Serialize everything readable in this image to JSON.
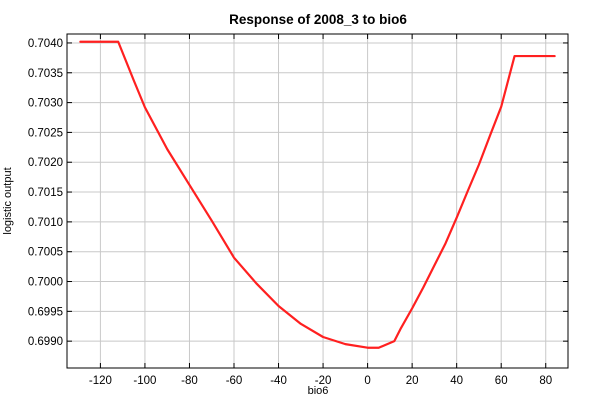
{
  "chart_data": {
    "type": "line",
    "title": "Response of 2008_3 to bio6",
    "xlabel": "bio6",
    "ylabel": "logistic output",
    "xlim": [
      -135,
      90
    ],
    "ylim": [
      0.69855,
      0.70415
    ],
    "x_ticks": [
      -120,
      -100,
      -80,
      -60,
      -40,
      -20,
      0,
      20,
      40,
      60,
      80
    ],
    "y_ticks": [
      0.699,
      0.6995,
      0.7,
      0.7005,
      0.701,
      0.7015,
      0.702,
      0.7025,
      0.703,
      0.7035,
      0.704
    ],
    "y_tick_labels": [
      "0.6990",
      "0.6995",
      "0.7000",
      "0.7005",
      "0.7010",
      "0.7015",
      "0.7020",
      "0.7025",
      "0.7030",
      "0.7035",
      "0.7040"
    ],
    "grid": true,
    "colors": {
      "series": "#ff2020",
      "grid": "#c8c8c8",
      "frame": "#000000"
    },
    "series": [
      {
        "color": "#ff2020",
        "x": [
          -129,
          -112,
          -105,
          -100,
          -90,
          -80,
          -70,
          -60,
          -50,
          -40,
          -30,
          -20,
          -10,
          0,
          5,
          12,
          15,
          20,
          25,
          30,
          35,
          40,
          45,
          50,
          55,
          60,
          66,
          84
        ],
        "y": [
          0.70402,
          0.70402,
          0.70337,
          0.70292,
          0.70222,
          0.70162,
          0.70102,
          0.7004,
          0.69997,
          0.69959,
          0.69929,
          0.69907,
          0.69895,
          0.69889,
          0.69889,
          0.699,
          0.69922,
          0.69955,
          0.6999,
          0.70027,
          0.70064,
          0.70107,
          0.70152,
          0.70196,
          0.70245,
          0.70293,
          0.70378,
          0.70378
        ]
      }
    ]
  }
}
